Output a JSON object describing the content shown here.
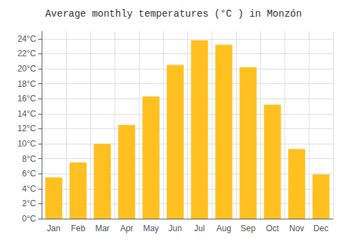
{
  "chart_data": {
    "type": "bar",
    "title": "Average monthly temperatures (°C ) in Monzón",
    "categories": [
      "Jan",
      "Feb",
      "Mar",
      "Apr",
      "May",
      "Jun",
      "Jul",
      "Aug",
      "Sep",
      "Oct",
      "Nov",
      "Dec"
    ],
    "values": [
      5.5,
      7.5,
      10.0,
      12.5,
      16.3,
      20.5,
      23.8,
      23.2,
      20.2,
      15.2,
      9.3,
      5.9
    ],
    "color": "#FFC020",
    "ylim": [
      0,
      25
    ],
    "yticks": [
      {
        "value": 0,
        "label": "0°C"
      },
      {
        "value": 2,
        "label": "2°C"
      },
      {
        "value": 4,
        "label": "4°C"
      },
      {
        "value": 6,
        "label": "6°C"
      },
      {
        "value": 8,
        "label": "8°C"
      },
      {
        "value": 10,
        "label": "10°C"
      },
      {
        "value": 12,
        "label": "12°C"
      },
      {
        "value": 14,
        "label": "14°C"
      },
      {
        "value": 16,
        "label": "16°C"
      },
      {
        "value": 18,
        "label": "18°C"
      },
      {
        "value": 20,
        "label": "20°C"
      },
      {
        "value": 22,
        "label": "22°C"
      },
      {
        "value": 24,
        "label": "24°C"
      }
    ],
    "grid": true
  }
}
